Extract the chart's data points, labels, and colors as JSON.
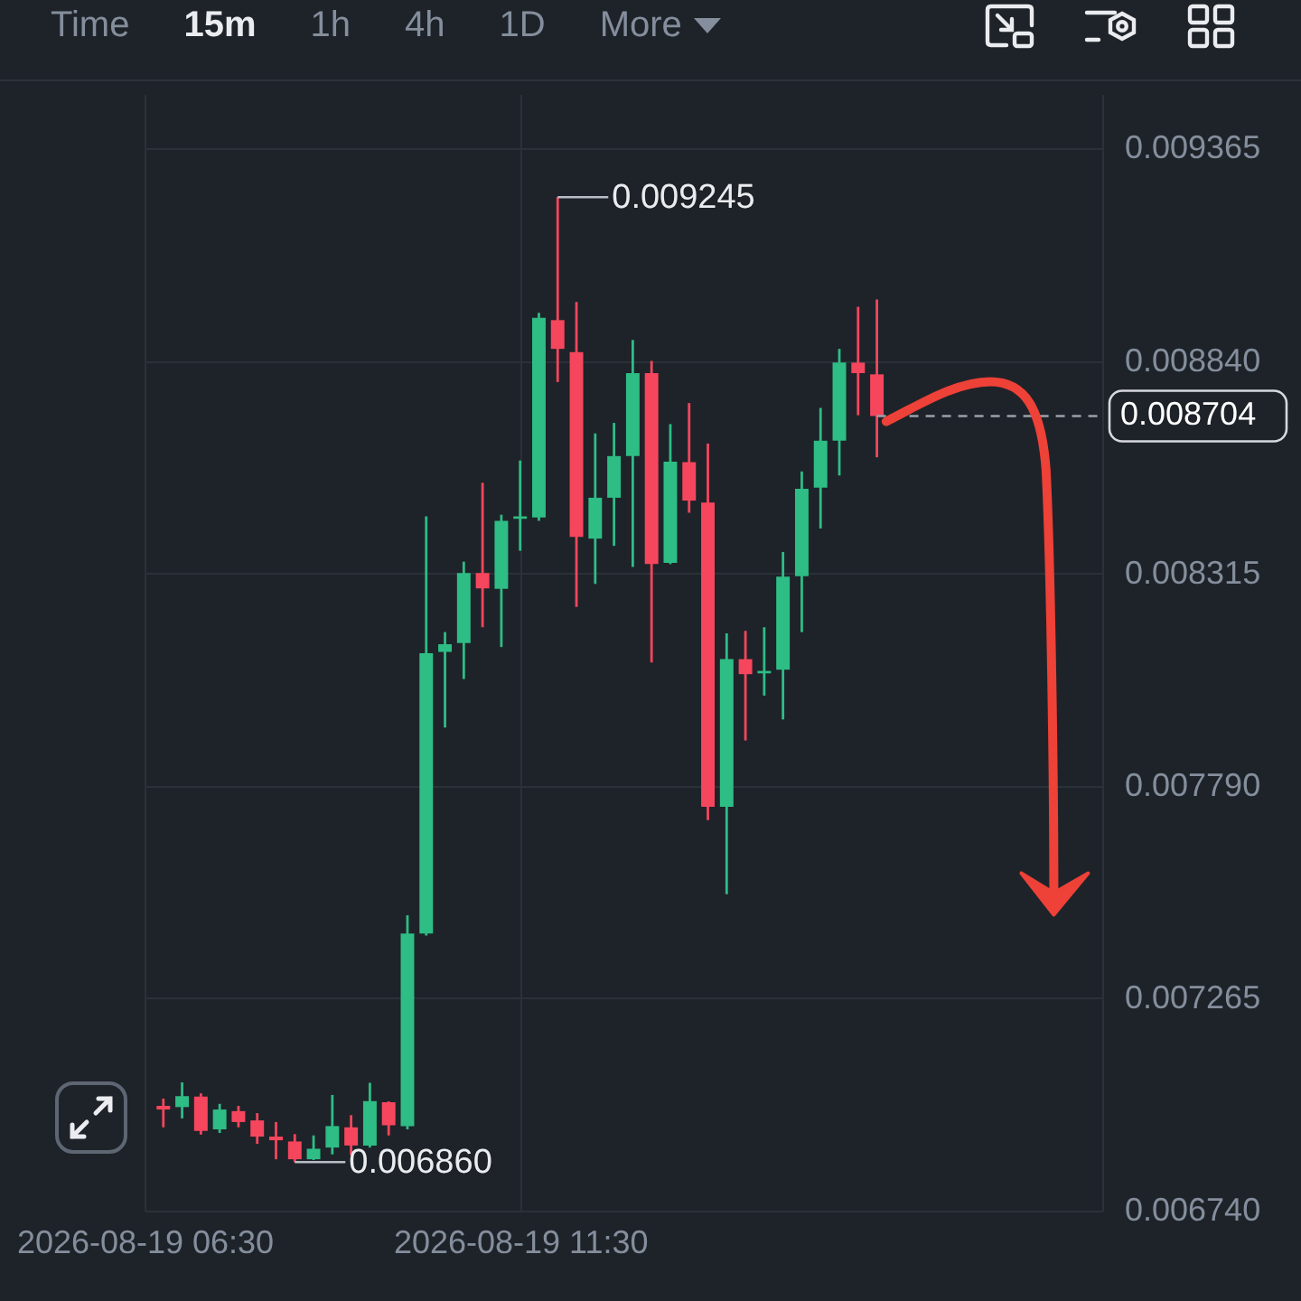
{
  "chart_data": {
    "type": "candlestick",
    "x": [
      "2026-08-19T06:45",
      "2026-08-19T07:00",
      "2026-08-19T07:15",
      "2026-08-19T07:30",
      "2026-08-19T07:45",
      "2026-08-19T08:00",
      "2026-08-19T08:15",
      "2026-08-19T08:30",
      "2026-08-19T08:45",
      "2026-08-19T09:00",
      "2026-08-19T09:15",
      "2026-08-19T09:30",
      "2026-08-19T09:45",
      "2026-08-19T10:00",
      "2026-08-19T10:15",
      "2026-08-19T10:30",
      "2026-08-19T10:45",
      "2026-08-19T11:00",
      "2026-08-19T11:15",
      "2026-08-19T11:30",
      "2026-08-19T11:45",
      "2026-08-19T12:00",
      "2026-08-19T12:15",
      "2026-08-19T12:30",
      "2026-08-19T12:45",
      "2026-08-19T13:00",
      "2026-08-19T13:15",
      "2026-08-19T13:30",
      "2026-08-19T13:45",
      "2026-08-19T14:00",
      "2026-08-19T14:15",
      "2026-08-19T14:30",
      "2026-08-19T14:45",
      "2026-08-19T15:00",
      "2026-08-19T15:15",
      "2026-08-19T15:30",
      "2026-08-19T15:45",
      "2026-08-19T16:00",
      "2026-08-19T16:15"
    ],
    "ohlc": [
      [
        0.006999,
        0.007017,
        0.006946,
        0.00699
      ],
      [
        0.006996,
        0.007057,
        0.006968,
        0.007023
      ],
      [
        0.007022,
        0.00703,
        0.006928,
        0.006937
      ],
      [
        0.006941,
        0.007004,
        0.006932,
        0.00699
      ],
      [
        0.006986,
        0.006999,
        0.006946,
        0.006959
      ],
      [
        0.006963,
        0.006981,
        0.006905,
        0.006923
      ],
      [
        0.006923,
        0.006959,
        0.006867,
        0.006914
      ],
      [
        0.006911,
        0.006929,
        0.00686,
        0.006867
      ],
      [
        0.006867,
        0.006926,
        0.006865,
        0.006893
      ],
      [
        0.006896,
        0.007026,
        0.006879,
        0.006949
      ],
      [
        0.006946,
        0.006976,
        0.006877,
        0.006901
      ],
      [
        0.006901,
        0.007056,
        0.006896,
        0.007011
      ],
      [
        0.007008,
        0.00701,
        0.006926,
        0.006951
      ],
      [
        0.006949,
        0.00747,
        0.006941,
        0.007425
      ],
      [
        0.007425,
        0.008456,
        0.00742,
        0.008118
      ],
      [
        0.008121,
        0.00817,
        0.007934,
        0.00814
      ],
      [
        0.008143,
        0.008344,
        0.008054,
        0.008316
      ],
      [
        0.008316,
        0.008539,
        0.008182,
        0.008278
      ],
      [
        0.008277,
        0.00846,
        0.008133,
        0.008445
      ],
      [
        0.00845,
        0.008594,
        0.008371,
        0.008456
      ],
      [
        0.008453,
        0.008959,
        0.008445,
        0.008947
      ],
      [
        0.008941,
        0.009245,
        0.008788,
        0.00887
      ],
      [
        0.008862,
        0.008986,
        0.008232,
        0.008405
      ],
      [
        0.008401,
        0.008661,
        0.008289,
        0.008502
      ],
      [
        0.008502,
        0.008687,
        0.008383,
        0.008605
      ],
      [
        0.008605,
        0.008892,
        0.008331,
        0.00881
      ],
      [
        0.00881,
        0.00884,
        0.008095,
        0.008338
      ],
      [
        0.008341,
        0.008684,
        0.008338,
        0.008591
      ],
      [
        0.00859,
        0.008736,
        0.008465,
        0.008495
      ],
      [
        0.00849,
        0.008636,
        0.007705,
        0.007738
      ],
      [
        0.007738,
        0.008167,
        0.007522,
        0.008103
      ],
      [
        0.008103,
        0.008173,
        0.007902,
        0.008066
      ],
      [
        0.008068,
        0.008182,
        0.008013,
        0.008074
      ],
      [
        0.008077,
        0.008368,
        0.007954,
        0.008307
      ],
      [
        0.008308,
        0.008567,
        0.00817,
        0.008524
      ],
      [
        0.008527,
        0.008724,
        0.008426,
        0.008643
      ],
      [
        0.008643,
        0.00887,
        0.008557,
        0.008836
      ],
      [
        0.008836,
        0.008974,
        0.008706,
        0.00881
      ],
      [
        0.008807,
        0.008992,
        0.008602,
        0.008704
      ]
    ],
    "colors": [
      "#f6465d",
      "#2ebd85",
      "#f6465d",
      "#2ebd85",
      "#f6465d",
      "#f6465d",
      "#f6465d",
      "#f6465d",
      "#2ebd85",
      "#2ebd85",
      "#f6465d",
      "#2ebd85",
      "#f6465d",
      "#2ebd85",
      "#2ebd85",
      "#2ebd85",
      "#2ebd85",
      "#f6465d",
      "#2ebd85",
      "#2ebd85",
      "#2ebd85",
      "#f6465d",
      "#f6465d",
      "#2ebd85",
      "#2ebd85",
      "#2ebd85",
      "#f6465d",
      "#2ebd85",
      "#f6465d",
      "#f6465d",
      "#2ebd85",
      "#f6465d",
      "#2ebd85",
      "#2ebd85",
      "#2ebd85",
      "#2ebd85",
      "#2ebd85",
      "#f6465d",
      "#f6465d"
    ],
    "xlim": [
      "2026-08-19T06:30",
      "2026-08-19T19:15"
    ],
    "xticks": [
      {
        "value": "2026-08-19T06:30",
        "label": "2026-08-19 06:30"
      },
      {
        "value": "2026-08-19T11:30",
        "label": "2026-08-19 11:30"
      }
    ],
    "ylim": [
      0.00674,
      0.0095
    ],
    "yticks": [
      {
        "value": 0.00674,
        "label": "0.006740"
      },
      0.007265,
      {
        "value": 0.00779,
        "label": "0.007790"
      },
      0.008315,
      {
        "value": 0.00884,
        "label": "0.008840"
      },
      0.009365
    ],
    "grid": true,
    "ref_lines": [
      {
        "axis": "y",
        "value": 0.008704,
        "label": "0.008704",
        "line_style": "dashed",
        "color": "#9aa1ab"
      }
    ],
    "annotations": [
      "Time",
      "15m",
      "1h",
      "4h",
      "1D",
      "More",
      {
        "text": "0.009245",
        "x": "2026-08-19T12:00",
        "y": 0.009245
      },
      {
        "text": "0.006860",
        "x": "2026-08-19T08:30",
        "y": 0.00686
      }
    ]
  }
}
